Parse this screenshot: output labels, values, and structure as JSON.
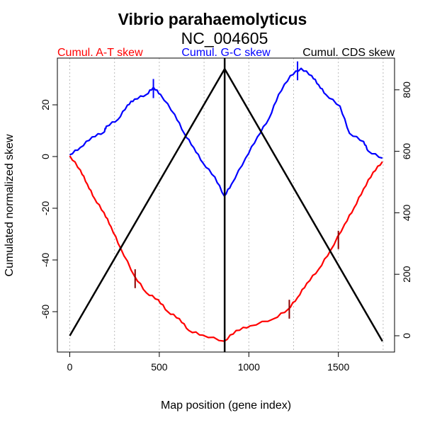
{
  "chart_data": {
    "type": "line",
    "title": "Vibrio parahaemolyticus",
    "subtitle": "NC_004605",
    "xlabel": "Map position (gene index)",
    "ylabel": "Cumulated normalized skew",
    "xlim": [
      0,
      1750
    ],
    "ylim": [
      -75,
      38
    ],
    "y2lim": [
      -50,
      900
    ],
    "x_ticks": [
      0,
      500,
      1000,
      1500
    ],
    "y_ticks": [
      -60,
      -40,
      -20,
      0,
      20
    ],
    "y2_ticks": [
      0,
      200,
      400,
      600,
      800
    ],
    "grid_x": [
      0,
      250,
      500,
      750,
      1000,
      1250,
      1500,
      1750
    ],
    "origin_line_x": 865,
    "legend": [
      "Cumul. A-T skew",
      "Cumul. G-C skew",
      "Cumul. CDS skew"
    ],
    "series": [
      {
        "name": "Cumul. A-T skew",
        "color": "#ff0000",
        "axis": "left",
        "x": [
          0,
          59,
          98,
          138,
          191,
          230,
          283,
          362,
          428,
          494,
          547,
          612,
          665,
          744,
          863,
          929,
          1008,
          1140,
          1219,
          1272,
          1324,
          1390,
          1456,
          1535,
          1588,
          1641,
          1694,
          1746
        ],
        "y": [
          0.3,
          -5.2,
          -10.7,
          -16.2,
          -21.7,
          -27.1,
          -35.3,
          -46.3,
          -52.7,
          -55.4,
          -60,
          -62.7,
          -67.3,
          -69.1,
          -71.4,
          -67.3,
          -65.5,
          -62.7,
          -59.1,
          -54.5,
          -49,
          -43.6,
          -36.3,
          -26.2,
          -19.8,
          -12.5,
          -6.1,
          -2
        ]
      },
      {
        "name": "Cumul. G-C skew",
        "color": "#0000ff",
        "axis": "left",
        "x": [
          0,
          59,
          125,
          191,
          204,
          270,
          322,
          362,
          428,
          467,
          507,
          586,
          639,
          692,
          744,
          810,
          863,
          903,
          982,
          1048,
          1114,
          1166,
          1232,
          1292,
          1351,
          1390,
          1430,
          1509,
          1562,
          1641,
          1667,
          1746
        ],
        "y": [
          0.7,
          3.5,
          7.6,
          9.4,
          11.7,
          14.4,
          19.9,
          22.2,
          24,
          26.8,
          24,
          16.3,
          9,
          3.5,
          -2.5,
          -7.9,
          -15.3,
          -10.7,
          -0.6,
          7.6,
          14.9,
          24,
          31.3,
          34.1,
          31.3,
          27.7,
          24,
          19.5,
          9,
          5.8,
          2.1,
          -0.6
        ]
      },
      {
        "name": "Cumul. CDS skew",
        "color": "#000000",
        "axis": "right",
        "x": [
          0,
          865,
          1746
        ],
        "y": [
          0,
          868,
          -18
        ]
      }
    ],
    "markers": [
      {
        "series": "Cumul. G-C skew",
        "color": "#0000ff",
        "x": 467,
        "y": [
          22.6,
          30
        ]
      },
      {
        "series": "Cumul. G-C skew",
        "color": "#0000ff",
        "x": 1272,
        "y": [
          29.5,
          36.8
        ]
      },
      {
        "series": "Cumul. A-T skew",
        "color": "#8b0000",
        "x": 365,
        "y": [
          -50.9,
          -43.6
        ]
      },
      {
        "series": "Cumul. A-T skew",
        "color": "#8b0000",
        "x": 1226,
        "y": [
          -62.7,
          -55.4
        ]
      },
      {
        "series": "Cumul. A-T skew",
        "color": "#8b0000",
        "x": 1500,
        "y": [
          -35.8,
          -28.7
        ]
      }
    ]
  }
}
